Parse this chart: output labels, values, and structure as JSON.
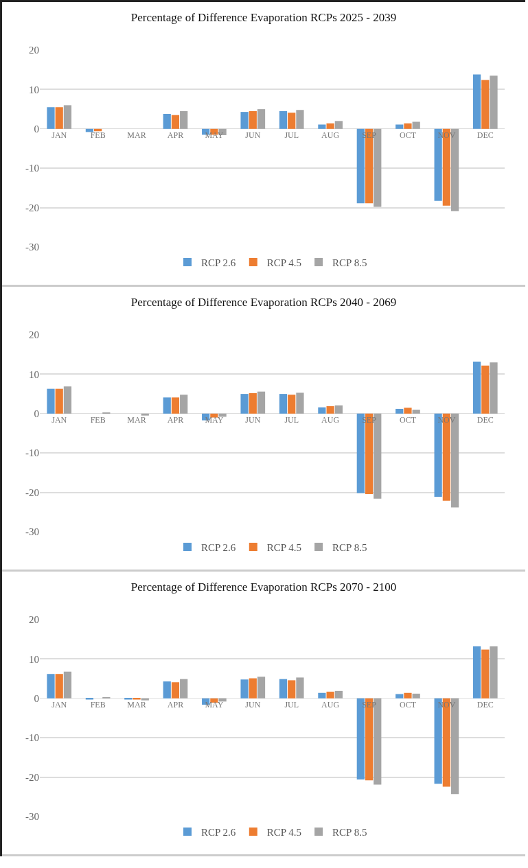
{
  "chart_data": [
    {
      "type": "bar",
      "title": "Percentage of Difference Evaporation RCPs 2025 - 2039",
      "categories": [
        "JAN",
        "FEB",
        "MAR",
        "APR",
        "MAY",
        "JUN",
        "JUL",
        "AUG",
        "SEP",
        "OCT",
        "NOV",
        "DEC"
      ],
      "series": [
        {
          "name": "RCP 2.6",
          "color": "#5b9bd5",
          "values": [
            5.5,
            -0.8,
            0,
            3.8,
            -1.5,
            4.3,
            4.5,
            1.1,
            -18.9,
            1.1,
            -18.3,
            13.8
          ]
        },
        {
          "name": "RCP 4.5",
          "color": "#ed7d31",
          "values": [
            5.5,
            -0.6,
            0,
            3.5,
            -1.5,
            4.5,
            4.1,
            1.4,
            -18.9,
            1.4,
            -19.5,
            12.4
          ]
        },
        {
          "name": "RCP 8.5",
          "color": "#a5a5a5",
          "values": [
            6.0,
            0,
            0,
            4.5,
            -1.6,
            5.0,
            4.8,
            2.0,
            -19.8,
            1.8,
            -20.9,
            13.5
          ]
        }
      ],
      "ylim": [
        -30,
        20
      ],
      "yticks": [
        -30,
        -20,
        -10,
        0,
        10,
        20
      ],
      "grid": "y",
      "legend": "bottom"
    },
    {
      "type": "bar",
      "title": "Percentage of Difference Evaporation RCPs 2040 - 2069",
      "categories": [
        "JAN",
        "FEB",
        "MAR",
        "APR",
        "MAY",
        "JUN",
        "JUL",
        "AUG",
        "SEP",
        "OCT",
        "NOV",
        "DEC"
      ],
      "series": [
        {
          "name": "RCP 2.6",
          "color": "#5b9bd5",
          "values": [
            6.3,
            0,
            0,
            4.1,
            -1.7,
            5.0,
            5.0,
            1.6,
            -20.2,
            1.2,
            -21.1,
            13.2
          ]
        },
        {
          "name": "RCP 4.5",
          "color": "#ed7d31",
          "values": [
            6.3,
            0,
            0,
            4.1,
            -1.0,
            5.2,
            4.8,
            1.9,
            -20.4,
            1.5,
            -22.1,
            12.2
          ]
        },
        {
          "name": "RCP 8.5",
          "color": "#a5a5a5",
          "values": [
            6.9,
            0.3,
            -0.5,
            4.8,
            -0.8,
            5.6,
            5.3,
            2.1,
            -21.6,
            1.0,
            -23.8,
            13.0
          ]
        }
      ],
      "ylim": [
        -30,
        20
      ],
      "yticks": [
        -30,
        -20,
        -10,
        0,
        10,
        20
      ],
      "grid": "y",
      "legend": "bottom"
    },
    {
      "type": "bar",
      "title": "Percentage of Difference Evaporation RCPs 2070 - 2100",
      "categories": [
        "JAN",
        "FEB",
        "MAR",
        "APR",
        "MAY",
        "JUN",
        "JUL",
        "AUG",
        "SEP",
        "OCT",
        "NOV",
        "DEC"
      ],
      "series": [
        {
          "name": "RCP 2.6",
          "color": "#5b9bd5",
          "values": [
            6.2,
            -0.3,
            -0.3,
            4.3,
            -1.6,
            4.8,
            4.9,
            1.4,
            -20.6,
            1.1,
            -21.7,
            13.2
          ]
        },
        {
          "name": "RCP 4.5",
          "color": "#ed7d31",
          "values": [
            6.2,
            0,
            -0.3,
            4.1,
            -1.1,
            5.1,
            4.6,
            1.7,
            -20.8,
            1.4,
            -22.4,
            12.4
          ]
        },
        {
          "name": "RCP 8.5",
          "color": "#a5a5a5",
          "values": [
            6.8,
            0.3,
            -0.5,
            4.9,
            -0.8,
            5.5,
            5.3,
            1.9,
            -21.9,
            1.2,
            -24.3,
            13.2
          ]
        }
      ],
      "ylim": [
        -30,
        20
      ],
      "yticks": [
        -30,
        -20,
        -10,
        0,
        10,
        20
      ],
      "grid": "y",
      "legend": "bottom"
    }
  ]
}
